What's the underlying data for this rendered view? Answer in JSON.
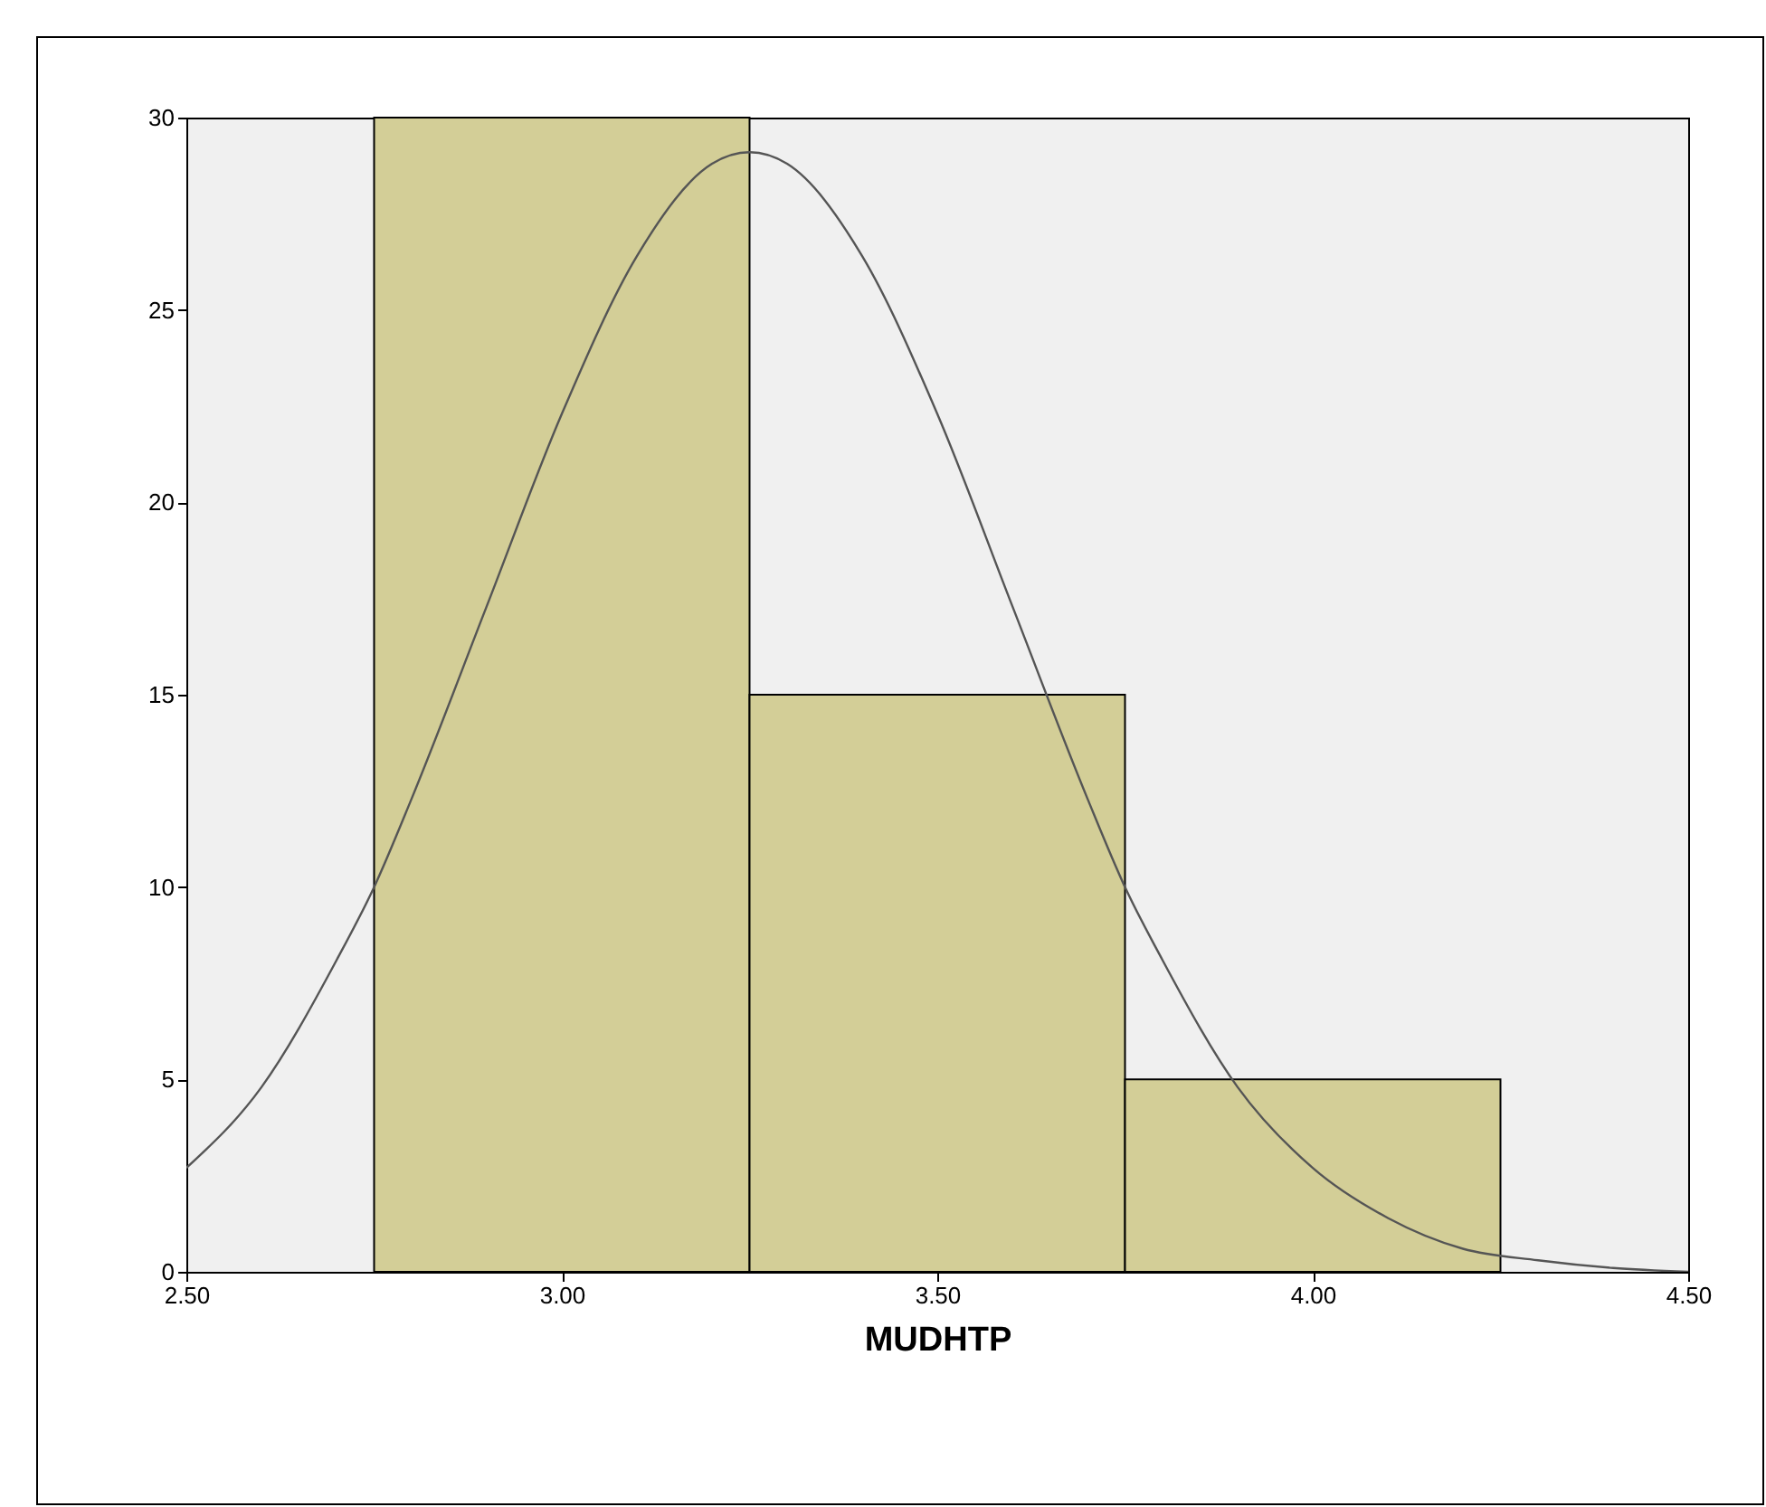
{
  "chart_data": {
    "type": "histogram",
    "xlabel": "MUDHTP",
    "bins": [
      2.75,
      3.25,
      3.75,
      4.25
    ],
    "values": [
      30,
      15,
      5
    ],
    "color": "#d3ce97",
    "series": [
      {
        "type": "line",
        "color": "#555555",
        "x": [
          2.5,
          2.6,
          2.7,
          2.75,
          2.8,
          2.9,
          3.0,
          3.1,
          3.2,
          3.25,
          3.3,
          3.4,
          3.5,
          3.6,
          3.7,
          3.75,
          3.8,
          3.9,
          4.0,
          4.1,
          4.2,
          4.3,
          4.4,
          4.5
        ],
        "values": [
          2.7,
          4.8,
          8.1,
          10,
          12.3,
          17.3,
          22.3,
          26.4,
          28.8,
          29.1,
          28.8,
          26.4,
          22.3,
          17.3,
          12.3,
          10,
          8.1,
          4.8,
          2.7,
          1.4,
          0.6,
          0.3,
          0.1,
          0
        ]
      }
    ],
    "xlim": [
      2.5,
      4.5
    ],
    "xticks": [
      {
        "value": 2.5,
        "label": "2.50"
      },
      {
        "value": 3,
        "label": "3.00"
      },
      {
        "value": 3.5,
        "label": "3.50"
      },
      {
        "value": 4,
        "label": "4.00"
      },
      {
        "value": 4.5,
        "label": "4.50"
      }
    ],
    "ylim": [
      0,
      30
    ],
    "yticks": [
      0,
      5,
      10,
      15,
      20,
      25,
      30
    ],
    "grid": false
  }
}
